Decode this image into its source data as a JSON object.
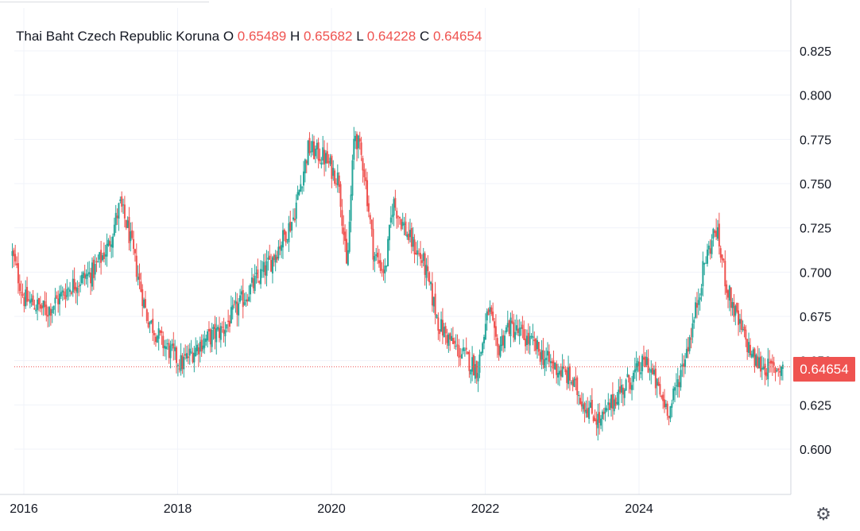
{
  "legend": {
    "symbol": "Thai Baht Czech Republic Koruna",
    "open_label": "O",
    "open": "0.65489",
    "high_label": "H",
    "high": "0.65682",
    "low_label": "L",
    "low": "0.64228",
    "close_label": "C",
    "close": "0.64654"
  },
  "last_price_label": "0.64654",
  "settings_icon": "gear-icon",
  "colors": {
    "up": "#26a69a",
    "down": "#ef5350",
    "grid": "#f0f3fa",
    "last_price_line": "#ef5350"
  },
  "chart_data": {
    "type": "candlestick",
    "title": "Thai Baht Czech Republic Koruna",
    "y_ticks": [
      "0.600",
      "0.625",
      "0.650",
      "0.675",
      "0.700",
      "0.725",
      "0.750",
      "0.775",
      "0.800",
      "0.825"
    ],
    "x_ticks": [
      "2016",
      "2018",
      "2020",
      "2022",
      "2024"
    ],
    "ylim": [
      0.58,
      0.84
    ],
    "grid": true,
    "last_close": 0.64654,
    "series": [
      {
        "t": [
          2015.85,
          2016.0,
          2016.3,
          2016.6,
          2016.9,
          2017.1,
          2017.25,
          2017.35,
          2017.6,
          2017.8,
          2018.05,
          2018.3,
          2018.6,
          2018.9,
          2019.2,
          2019.5,
          2019.7,
          2019.9,
          2020.1,
          2020.2,
          2020.3,
          2020.42,
          2020.55,
          2020.7,
          2020.8,
          2021.0,
          2021.2,
          2021.4,
          2021.6,
          2021.9,
          2022.05,
          2022.15,
          2022.3,
          2022.6,
          2022.8,
          2023.1,
          2023.3,
          2023.5,
          2023.7,
          2023.9,
          2024.1,
          2024.3,
          2024.4,
          2024.55,
          2024.7,
          2024.85,
          2025.0,
          2025.15,
          2025.3,
          2025.5,
          2025.7,
          2025.88
        ],
        "close": [
          0.71,
          0.685,
          0.678,
          0.692,
          0.7,
          0.715,
          0.738,
          0.725,
          0.675,
          0.66,
          0.648,
          0.66,
          0.668,
          0.688,
          0.705,
          0.73,
          0.77,
          0.765,
          0.752,
          0.7,
          0.78,
          0.76,
          0.71,
          0.7,
          0.74,
          0.72,
          0.705,
          0.67,
          0.658,
          0.645,
          0.68,
          0.655,
          0.67,
          0.66,
          0.65,
          0.64,
          0.625,
          0.615,
          0.63,
          0.64,
          0.65,
          0.628,
          0.622,
          0.645,
          0.67,
          0.705,
          0.725,
          0.69,
          0.67,
          0.65,
          0.645,
          0.64654
        ]
      }
    ]
  }
}
